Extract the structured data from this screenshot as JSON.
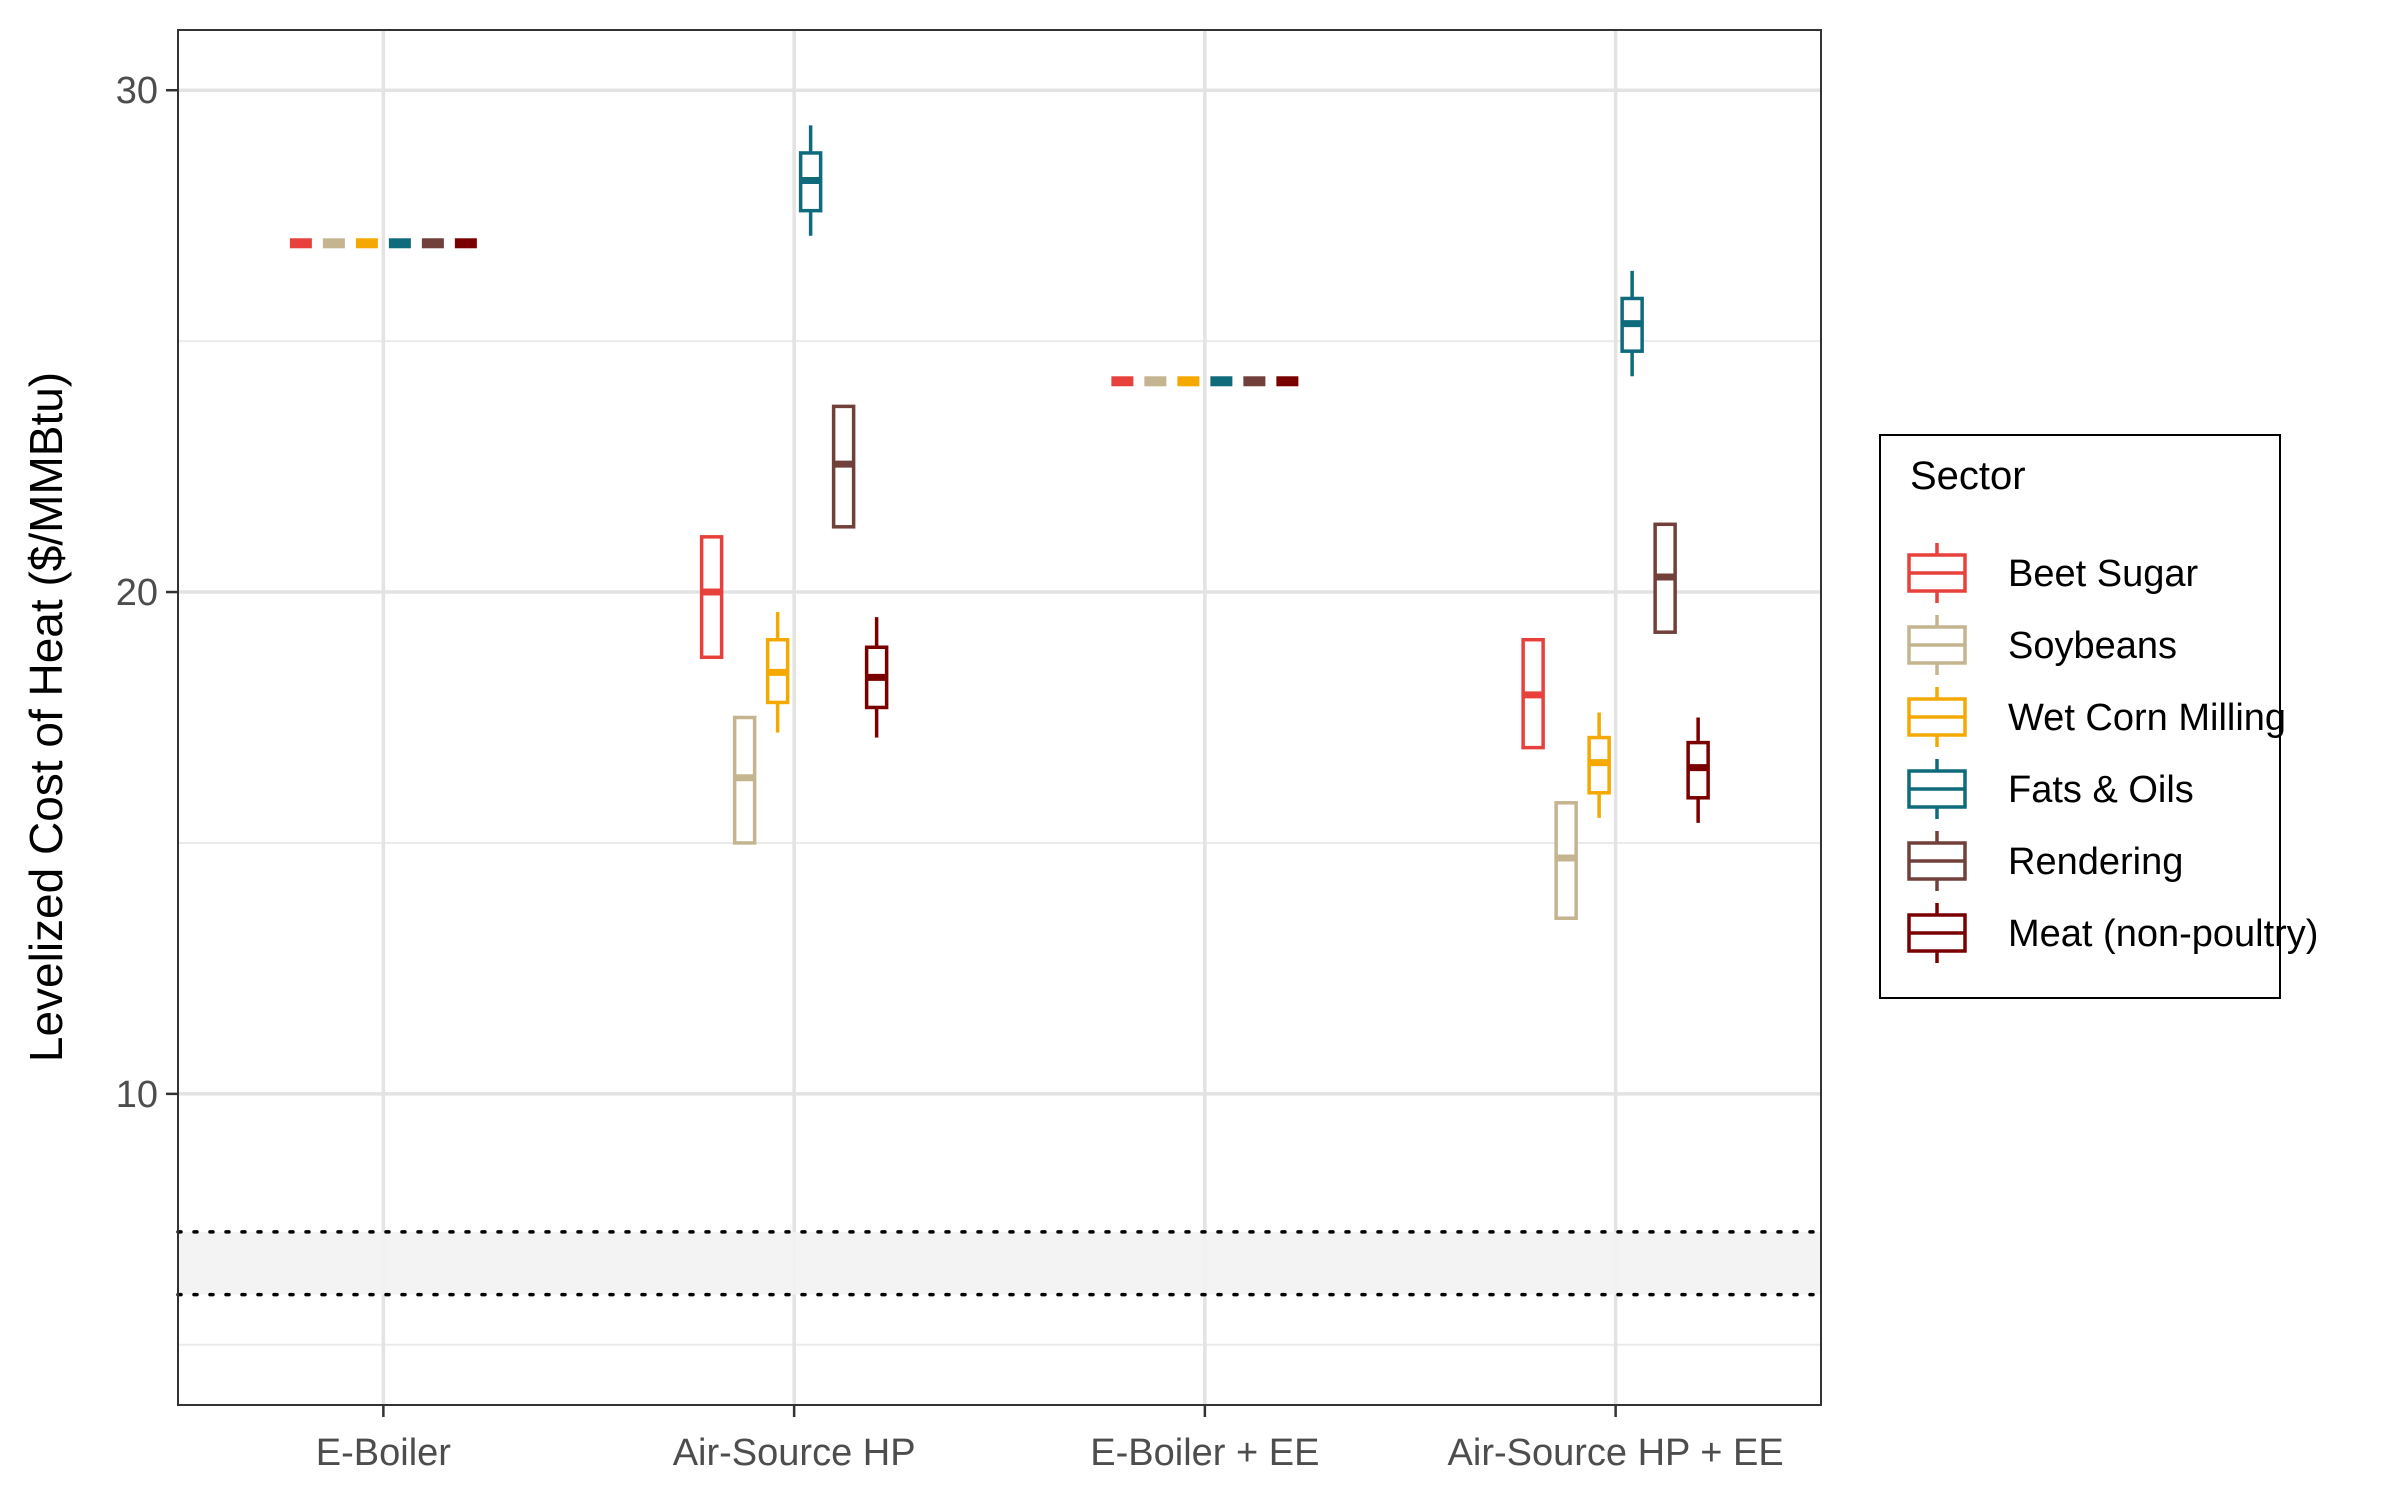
{
  "chart_data": {
    "type": "boxplot",
    "xlabel": "",
    "ylabel": "Levelized Cost of Heat ($/MMBtu)",
    "ylim": [
      3.8,
      31.2
    ],
    "yticks": [
      10,
      20,
      30
    ],
    "ytick_labels": [
      "10",
      "20",
      "30"
    ],
    "categories": [
      "E-Boiler",
      "Air-Source HP",
      "E-Boiler + EE",
      "Air-Source HP + EE"
    ],
    "grid": true,
    "shaded_band": {
      "ymin": 6.0,
      "ymax": 7.25,
      "line_style": "dotted"
    },
    "legend": {
      "title": "Sector",
      "position": "right"
    },
    "series": [
      {
        "name": "Beet Sugar",
        "color": "#e8413c",
        "boxes": [
          {
            "min": 26.95,
            "q1": 26.95,
            "median": 26.95,
            "q3": 26.95,
            "max": 26.95
          },
          {
            "min": 18.7,
            "q1": 18.7,
            "median": 20.0,
            "q3": 21.1,
            "max": 21.1
          },
          {
            "min": 24.2,
            "q1": 24.2,
            "median": 24.2,
            "q3": 24.2,
            "max": 24.2
          },
          {
            "min": 16.9,
            "q1": 16.9,
            "median": 17.95,
            "q3": 19.05,
            "max": 19.05
          }
        ]
      },
      {
        "name": "Soybeans",
        "color": "#c4b590",
        "boxes": [
          {
            "min": 26.95,
            "q1": 26.95,
            "median": 26.95,
            "q3": 26.95,
            "max": 26.95
          },
          {
            "min": 15.0,
            "q1": 15.0,
            "median": 16.3,
            "q3": 17.5,
            "max": 17.5
          },
          {
            "min": 24.2,
            "q1": 24.2,
            "median": 24.2,
            "q3": 24.2,
            "max": 24.2
          },
          {
            "min": 13.5,
            "q1": 13.5,
            "median": 14.7,
            "q3": 15.8,
            "max": 15.8
          }
        ]
      },
      {
        "name": "Wet Corn Milling",
        "color": "#f5a800",
        "boxes": [
          {
            "min": 26.95,
            "q1": 26.95,
            "median": 26.95,
            "q3": 26.95,
            "max": 26.95
          },
          {
            "min": 17.2,
            "q1": 17.8,
            "median": 18.4,
            "q3": 19.05,
            "max": 19.6
          },
          {
            "min": 24.2,
            "q1": 24.2,
            "median": 24.2,
            "q3": 24.2,
            "max": 24.2
          },
          {
            "min": 15.5,
            "q1": 16.0,
            "median": 16.6,
            "q3": 17.1,
            "max": 17.6
          }
        ]
      },
      {
        "name": "Fats & Oils",
        "color": "#0f6b7c",
        "boxes": [
          {
            "min": 26.95,
            "q1": 26.95,
            "median": 26.95,
            "q3": 26.95,
            "max": 26.95
          },
          {
            "min": 27.1,
            "q1": 27.6,
            "median": 28.2,
            "q3": 28.75,
            "max": 29.3
          },
          {
            "min": 24.2,
            "q1": 24.2,
            "median": 24.2,
            "q3": 24.2,
            "max": 24.2
          },
          {
            "min": 24.3,
            "q1": 24.8,
            "median": 25.35,
            "q3": 25.85,
            "max": 26.4
          }
        ]
      },
      {
        "name": "Rendering",
        "color": "#72403a",
        "boxes": [
          {
            "min": 26.95,
            "q1": 26.95,
            "median": 26.95,
            "q3": 26.95,
            "max": 26.95
          },
          {
            "min": 21.3,
            "q1": 21.3,
            "median": 22.55,
            "q3": 23.7,
            "max": 23.7
          },
          {
            "min": 24.2,
            "q1": 24.2,
            "median": 24.2,
            "q3": 24.2,
            "max": 24.2
          },
          {
            "min": 19.2,
            "q1": 19.2,
            "median": 20.3,
            "q3": 21.35,
            "max": 21.35
          }
        ]
      },
      {
        "name": "Meat (non-poultry)",
        "color": "#7a0000",
        "boxes": [
          {
            "min": 26.95,
            "q1": 26.95,
            "median": 26.95,
            "q3": 26.95,
            "max": 26.95
          },
          {
            "min": 17.1,
            "q1": 17.7,
            "median": 18.3,
            "q3": 18.9,
            "max": 19.5
          },
          {
            "min": 24.2,
            "q1": 24.2,
            "median": 24.2,
            "q3": 24.2,
            "max": 24.2
          },
          {
            "min": 15.4,
            "q1": 15.9,
            "median": 16.5,
            "q3": 17.0,
            "max": 17.5
          }
        ]
      }
    ]
  }
}
